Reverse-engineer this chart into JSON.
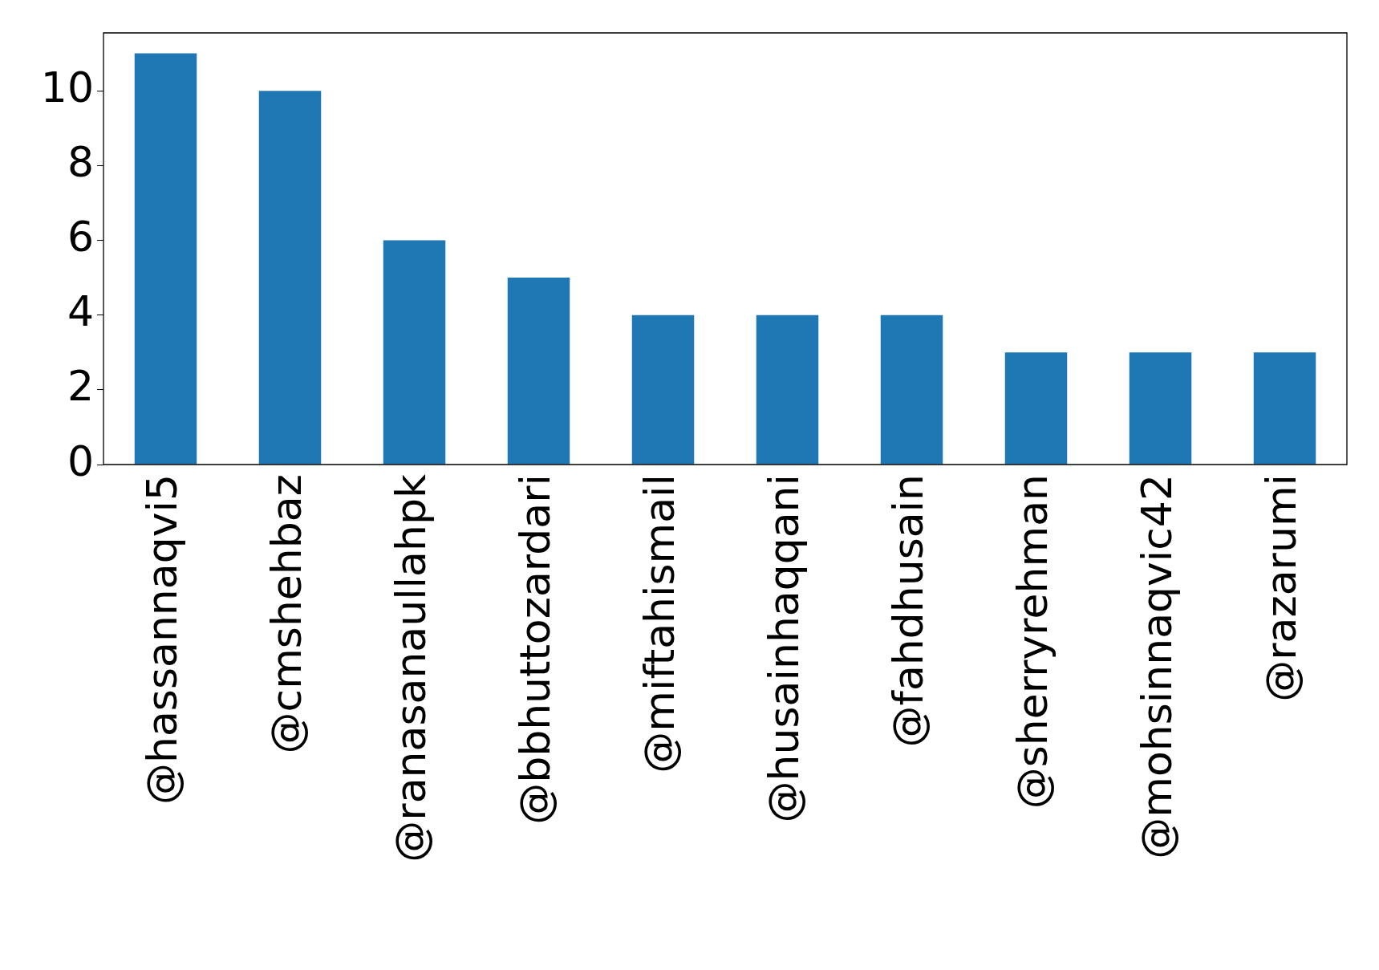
{
  "chart_data": {
    "type": "bar",
    "categories": [
      "@hassannaqvi5",
      "@cmshehbaz",
      "@ranasanaullahpk",
      "@bbhuttozardari",
      "@miftahismail",
      "@husainhaqqani",
      "@fahdhusain",
      "@sherryrehman",
      "@mohsinnaqvic42",
      "@razarumi"
    ],
    "values": [
      11,
      10,
      6,
      5,
      4,
      4,
      4,
      3,
      3,
      3
    ],
    "color": "#1f77b4",
    "ylim": [
      0,
      11.55
    ],
    "yticks": [
      0,
      2,
      4,
      6,
      8,
      10
    ],
    "grid": false,
    "legend": false
  }
}
